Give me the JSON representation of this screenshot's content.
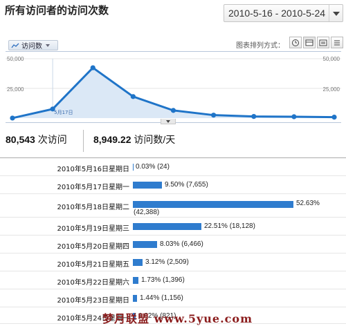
{
  "header": {
    "title": "所有访问者的访问次数",
    "date_range": "2010-5-16 - 2010-5-24"
  },
  "toolbar": {
    "metric_label": "访问数",
    "chart_mode_label": "图表排列方式：",
    "modes": [
      "clock-icon",
      "table-icon",
      "list-icon",
      "menu-icon"
    ]
  },
  "chart_data": {
    "type": "area",
    "categories": [
      "2010年5月16日",
      "2010年5月17日",
      "2010年5月18日",
      "2010年5月19日",
      "2010年5月20日",
      "2010年5月21日",
      "2010年5月22日",
      "2010年5月23日",
      "2010年5月24日"
    ],
    "values": [
      24,
      7655,
      42388,
      18128,
      6466,
      2509,
      1396,
      1156,
      821
    ],
    "ylim": [
      0,
      50000
    ],
    "y_ticks_left": [
      "50,000",
      "25,000"
    ],
    "y_ticks_right": [
      "50,000",
      "25,000"
    ],
    "point_label": "5月17日",
    "line_color": "#1f74c8",
    "fill_color": "#dbe8f6"
  },
  "summary": {
    "visits_value": "80,543",
    "visits_label": "次访问",
    "per_day_value": "8,949.22",
    "per_day_label": "访问数/天"
  },
  "table": {
    "bar_color": "#2f7cce",
    "rows": [
      {
        "date": "2010年5月16日星期日",
        "pct": "0.03% (24)",
        "fraction": 0.0003
      },
      {
        "date": "2010年5月17日星期一",
        "pct": "9.50% (7,655)",
        "fraction": 0.095
      },
      {
        "date": "2010年5月18日星期二",
        "pct": "52.63%",
        "pct2": "(42,388)",
        "fraction": 0.5263
      },
      {
        "date": "2010年5月19日星期三",
        "pct": "22.51% (18,128)",
        "fraction": 0.2251
      },
      {
        "date": "2010年5月20日星期四",
        "pct": "8.03% (6,466)",
        "fraction": 0.0803
      },
      {
        "date": "2010年5月21日星期五",
        "pct": "3.12% (2,509)",
        "fraction": 0.0312
      },
      {
        "date": "2010年5月22日星期六",
        "pct": "1.73% (1,396)",
        "fraction": 0.0173
      },
      {
        "date": "2010年5月23日星期日",
        "pct": "1.44% (1,156)",
        "fraction": 0.0144
      },
      {
        "date": "2010年5月24日星期一",
        "pct": "1.02% (821)",
        "fraction": 0.0102
      }
    ]
  },
  "watermark": "梦月联盟 www.5yue.com"
}
